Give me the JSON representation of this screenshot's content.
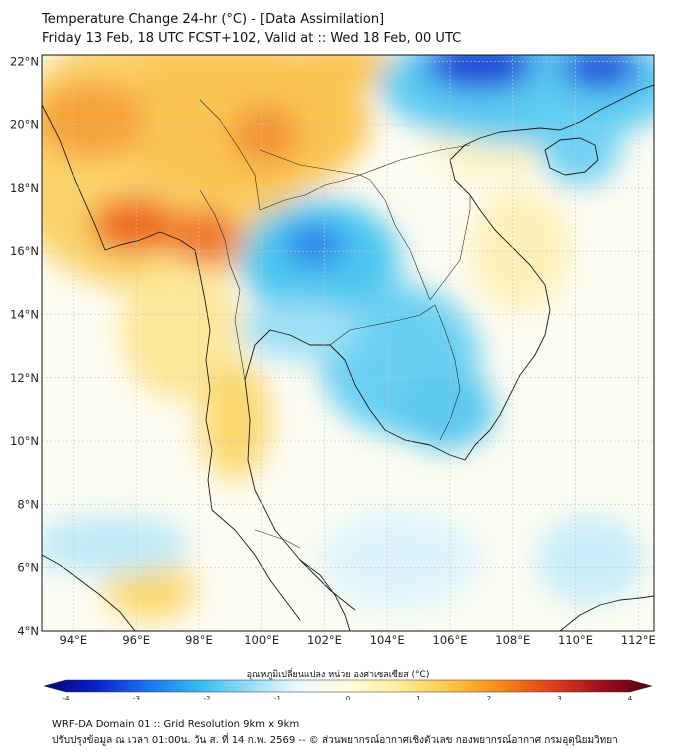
{
  "header": {
    "title_line1": "Temperature Change 24-hr (°C) - [Data Assimilation]",
    "title_line2": "Friday 13 Feb, 18 UTC FCST+102, Valid at :: Wed 18 Feb, 00 UTC"
  },
  "map": {
    "lon_range": [
      93,
      112.5
    ],
    "lat_range": [
      4,
      22.2
    ],
    "lat_labels": [
      "22°N",
      "20°N",
      "18°N",
      "16°N",
      "14°N",
      "12°N",
      "10°N",
      "8°N",
      "6°N",
      "4°N"
    ],
    "lat_values": [
      22,
      20,
      18,
      16,
      14,
      12,
      10,
      8,
      6,
      4
    ],
    "lon_labels": [
      "94°E",
      "96°E",
      "98°E",
      "100°E",
      "102°E",
      "104°E",
      "106°E",
      "108°E",
      "110°E",
      "112°E"
    ],
    "lon_values": [
      94,
      96,
      98,
      100,
      102,
      104,
      106,
      108,
      110,
      112
    ],
    "background_color": "#fdfcf2"
  },
  "colorbar": {
    "title": "อุณหภูมิเปลี่ยนแปลง หน่วย องศาเซลเซียส (°C)",
    "range": [
      -4,
      4
    ],
    "tick_labels": [
      "-4",
      "-3",
      "-2",
      "-1",
      "0",
      "1",
      "2",
      "3",
      "4"
    ],
    "tick_values": [
      -4,
      -3,
      -2,
      -1,
      0,
      1,
      2,
      3,
      4
    ],
    "colors": [
      "#06066e",
      "#0a1fc8",
      "#1e6ef0",
      "#2fb8f0",
      "#8fdcf5",
      "#eef9fc",
      "#fffce0",
      "#fdee9a",
      "#fcc64a",
      "#f58a1c",
      "#e0401c",
      "#a0101c",
      "#500010"
    ]
  },
  "footer": {
    "line1": "WRF-DA Domain 01 :: Grid Resolution 9km x 9km",
    "line2": "ปรับปรุงข้อมูล ณ เวลา 01:00น. วัน ส. ที่ 14 ก.พ. 2569 -- © ส่วนพยากรณ์อากาศเชิงตัวเลข กองพยากรณ์อากาศ กรมอุตุนิยมวิทยา"
  }
}
